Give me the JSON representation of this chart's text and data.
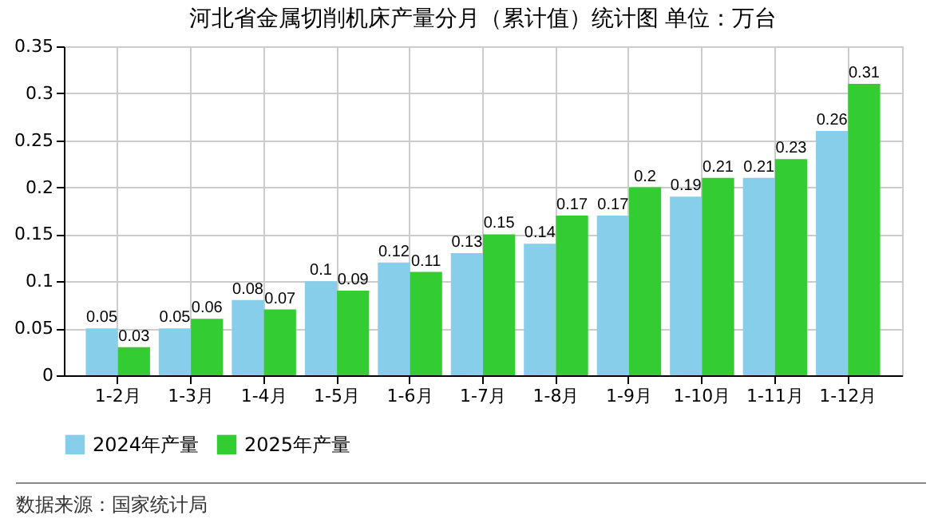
{
  "chart_data": {
    "type": "bar",
    "title": "河北省金属切削机床产量分月（累计值）统计图 单位：万台",
    "categories": [
      "1-2月",
      "1-3月",
      "1-4月",
      "1-5月",
      "1-6月",
      "1-7月",
      "1-8月",
      "1-9月",
      "1-10月",
      "1-11月",
      "1-12月"
    ],
    "series": [
      {
        "name": "2024年产量",
        "color": "#87ceeb",
        "values": [
          0.05,
          0.05,
          0.08,
          0.1,
          0.12,
          0.13,
          0.14,
          0.17,
          0.19,
          0.21,
          0.26
        ]
      },
      {
        "name": "2025年产量",
        "color": "#33cc33",
        "values": [
          0.03,
          0.06,
          0.07,
          0.09,
          0.11,
          0.15,
          0.17,
          0.2,
          0.21,
          0.23,
          0.31
        ]
      }
    ],
    "ylim": [
      0,
      0.35
    ],
    "yticks": [
      0,
      0.05,
      0.1,
      0.15,
      0.2,
      0.25,
      0.3,
      0.35
    ],
    "grid": true,
    "legend": "bottom",
    "data_labels": true,
    "annotations": [
      "数据来源：国家统计局"
    ]
  }
}
